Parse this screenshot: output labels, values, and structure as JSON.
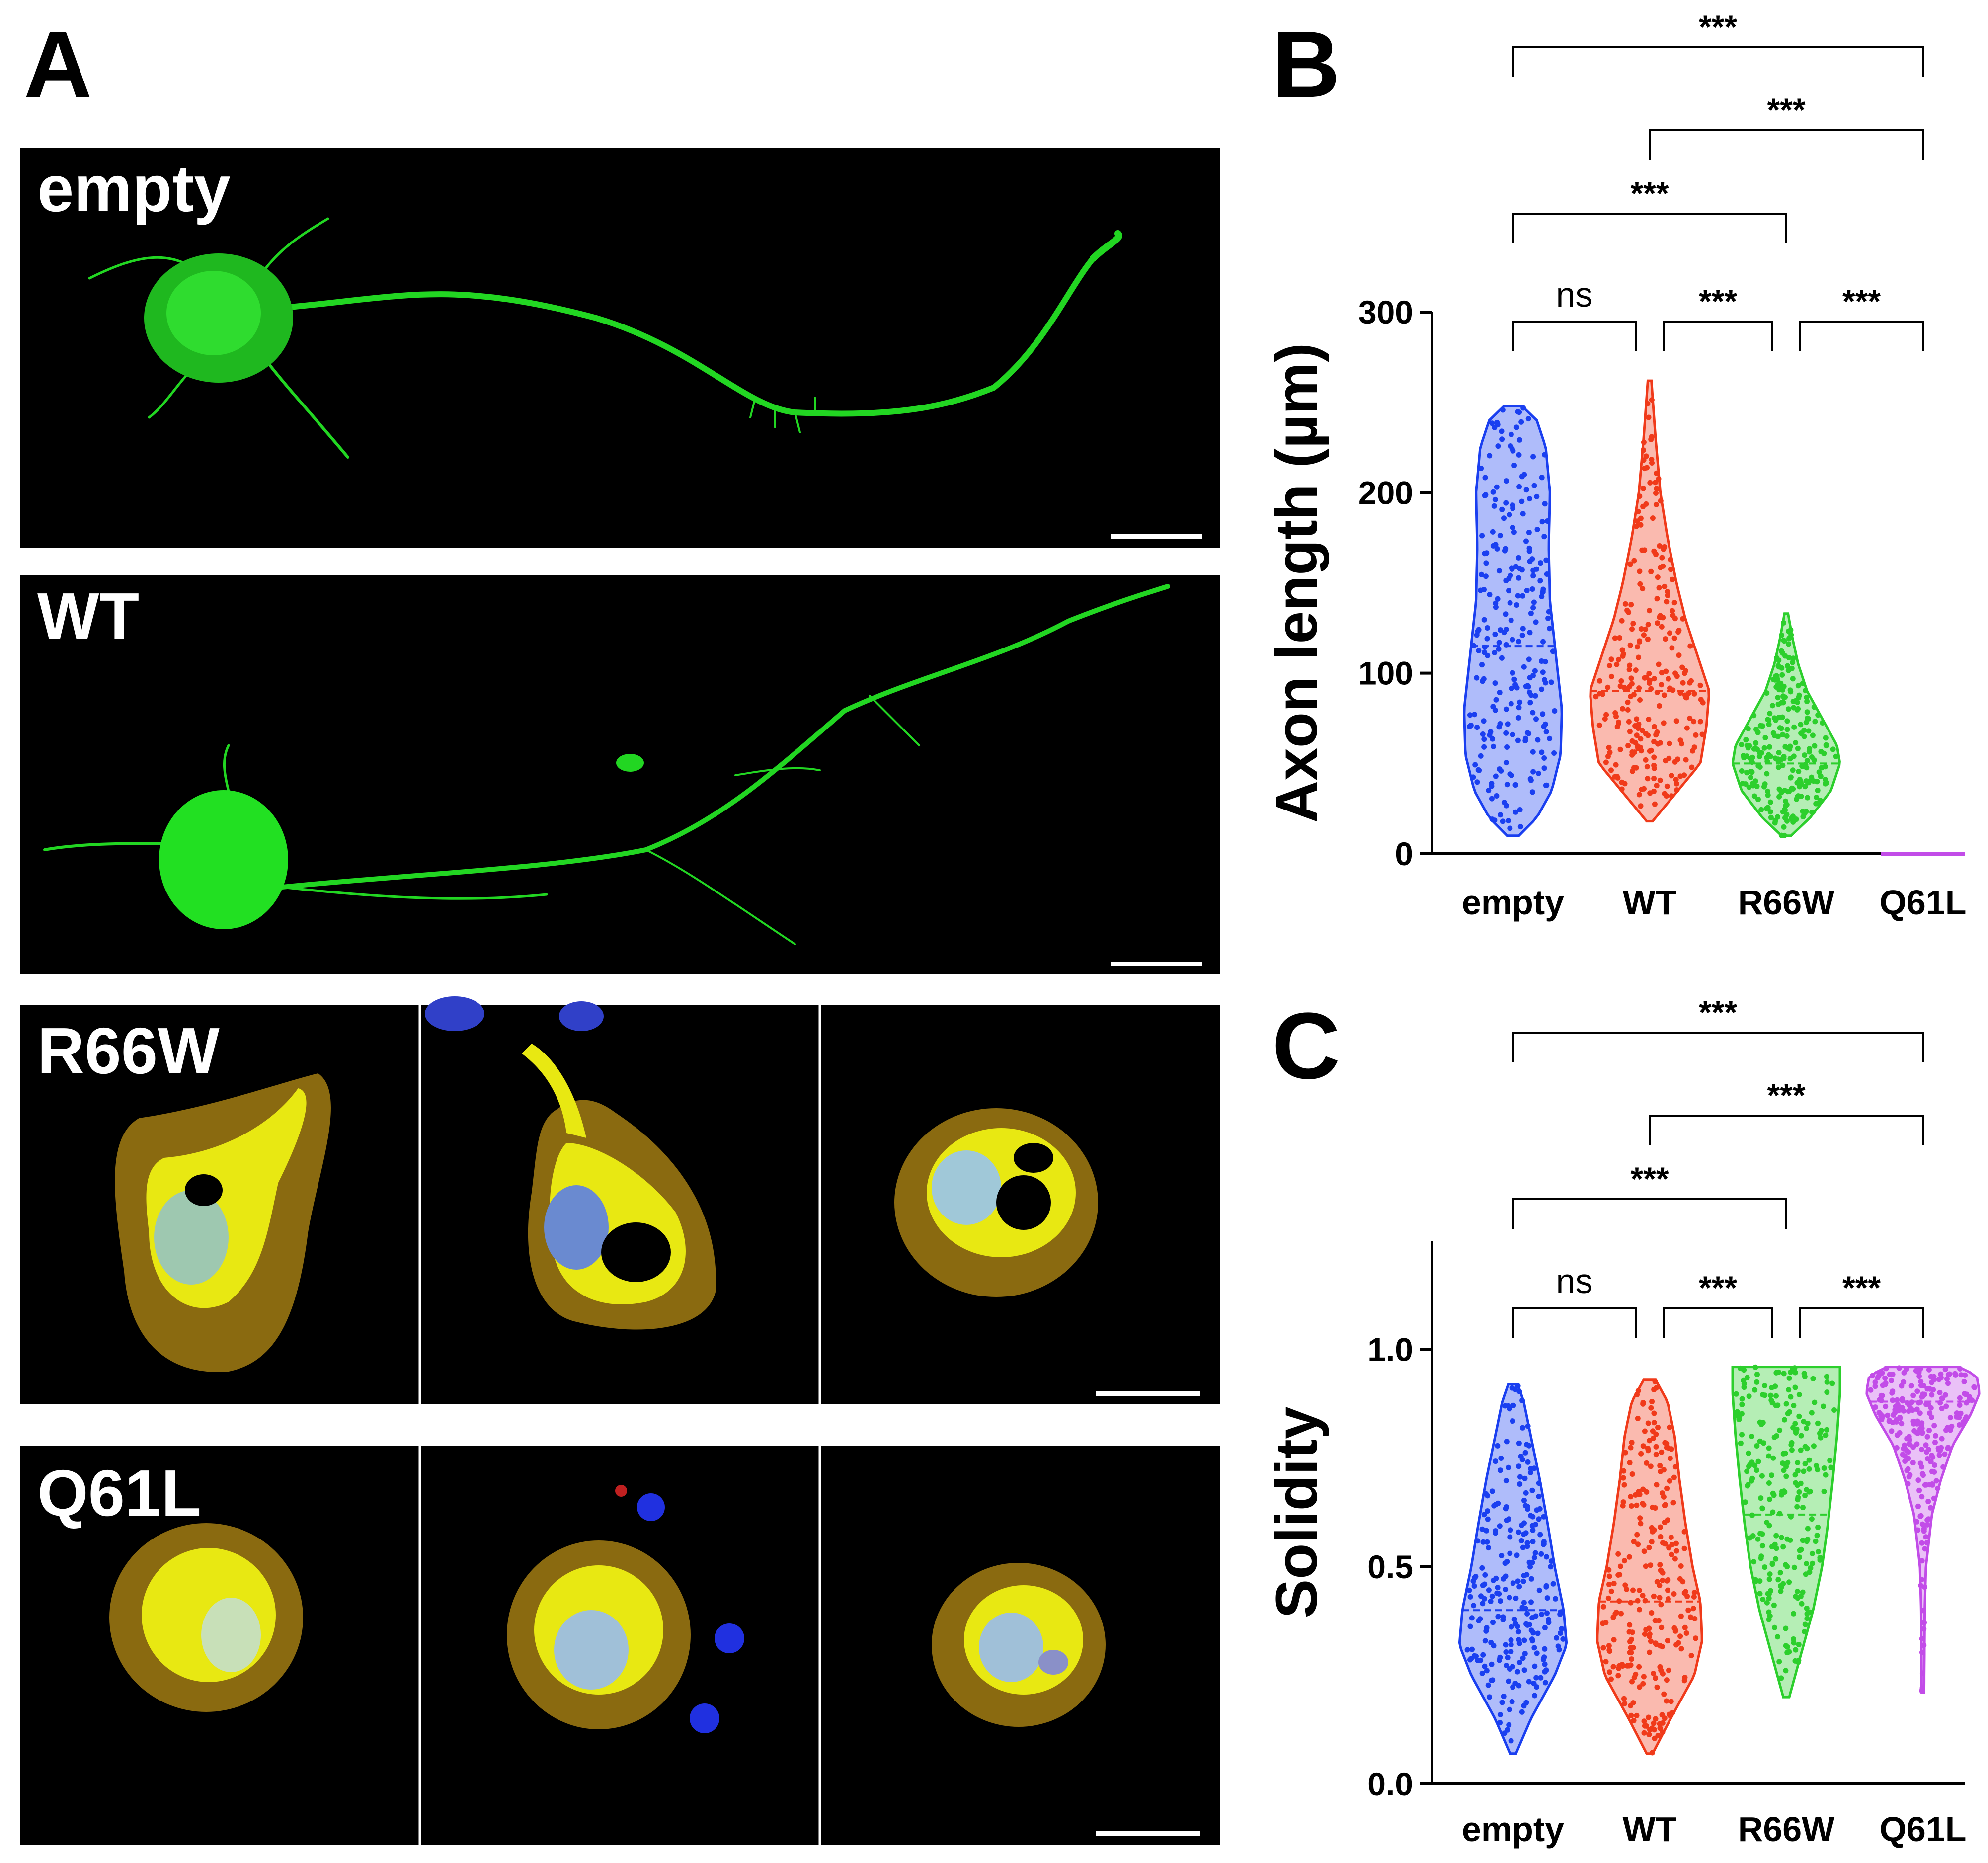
{
  "panels": {
    "A": "A",
    "B": "B",
    "C": "C"
  },
  "micrographs": {
    "rows": [
      {
        "label": "empty"
      },
      {
        "label": "WT"
      },
      {
        "label": "R66W"
      },
      {
        "label": "Q61L"
      }
    ]
  },
  "colors": {
    "empty": "#1a3ff0",
    "WT": "#f03a1a",
    "R66W": "#2ccf2c",
    "Q61L": "#c24ce8",
    "neuron_green": "#22d622",
    "cell_yellow": "#e8e812",
    "cell_orange": "#8a6a10",
    "nucleus_blue": "#5070e0"
  },
  "chart_data": [
    {
      "type": "violin",
      "panel": "B",
      "categories": [
        "empty",
        "WT",
        "R66W",
        "Q61L"
      ],
      "ylabel": "Axon length (µm)",
      "ylim": [
        0,
        300
      ],
      "yticks": [
        0,
        100,
        200,
        300
      ],
      "series": [
        {
          "category": "empty",
          "min": 10,
          "max": 248,
          "median": 115,
          "profile": [
            [
              10,
              0.1
            ],
            [
              20,
              0.4
            ],
            [
              35,
              0.65
            ],
            [
              55,
              0.8
            ],
            [
              80,
              0.82
            ],
            [
              110,
              0.72
            ],
            [
              140,
              0.62
            ],
            [
              170,
              0.6
            ],
            [
              200,
              0.62
            ],
            [
              225,
              0.55
            ],
            [
              240,
              0.4
            ],
            [
              248,
              0.15
            ]
          ]
        },
        {
          "category": "WT",
          "min": 18,
          "max": 262,
          "median": 90,
          "profile": [
            [
              18,
              0.05
            ],
            [
              30,
              0.35
            ],
            [
              50,
              0.85
            ],
            [
              70,
              0.95
            ],
            [
              90,
              1.0
            ],
            [
              110,
              0.8
            ],
            [
              130,
              0.6
            ],
            [
              150,
              0.45
            ],
            [
              175,
              0.3
            ],
            [
              200,
              0.18
            ],
            [
              230,
              0.1
            ],
            [
              262,
              0.03
            ]
          ]
        },
        {
          "category": "R66W",
          "min": 10,
          "max": 133,
          "median": 50,
          "profile": [
            [
              10,
              0.08
            ],
            [
              20,
              0.4
            ],
            [
              35,
              0.75
            ],
            [
              50,
              0.9
            ],
            [
              60,
              0.85
            ],
            [
              75,
              0.6
            ],
            [
              90,
              0.35
            ],
            [
              105,
              0.2
            ],
            [
              120,
              0.1
            ],
            [
              133,
              0.03
            ]
          ]
        },
        {
          "category": "Q61L",
          "min": 0,
          "max": 1,
          "median": 0,
          "profile": [
            [
              0,
              0.7
            ],
            [
              1,
              0.7
            ]
          ]
        }
      ],
      "comparisons": [
        {
          "a": "empty",
          "b": "Q61L",
          "label": "***"
        },
        {
          "a": "WT",
          "b": "Q61L",
          "label": "***"
        },
        {
          "a": "empty",
          "b": "R66W",
          "label": "***"
        },
        {
          "a": "empty",
          "b": "WT",
          "label": "ns"
        },
        {
          "a": "WT",
          "b": "R66W",
          "label": "***"
        },
        {
          "a": "R66W",
          "b": "Q61L",
          "label": "***"
        }
      ]
    },
    {
      "type": "violin",
      "panel": "C",
      "categories": [
        "empty",
        "WT",
        "R66W",
        "Q61L"
      ],
      "ylabel": "Solidity",
      "ylim": [
        0,
        1.25
      ],
      "yticks": [
        0.0,
        0.5,
        1.0
      ],
      "yticklabels": [
        "0.0",
        "0.5",
        "1.0"
      ],
      "series": [
        {
          "category": "empty",
          "min": 0.07,
          "max": 0.92,
          "median": 0.4,
          "profile": [
            [
              0.07,
              0.05
            ],
            [
              0.15,
              0.3
            ],
            [
              0.25,
              0.7
            ],
            [
              0.32,
              0.9
            ],
            [
              0.4,
              0.85
            ],
            [
              0.5,
              0.7
            ],
            [
              0.6,
              0.58
            ],
            [
              0.7,
              0.45
            ],
            [
              0.8,
              0.3
            ],
            [
              0.88,
              0.18
            ],
            [
              0.92,
              0.08
            ]
          ]
        },
        {
          "category": "WT",
          "min": 0.07,
          "max": 0.93,
          "median": 0.42,
          "profile": [
            [
              0.07,
              0.05
            ],
            [
              0.15,
              0.35
            ],
            [
              0.25,
              0.75
            ],
            [
              0.33,
              0.88
            ],
            [
              0.42,
              0.85
            ],
            [
              0.5,
              0.72
            ],
            [
              0.6,
              0.6
            ],
            [
              0.7,
              0.5
            ],
            [
              0.8,
              0.42
            ],
            [
              0.88,
              0.3
            ],
            [
              0.93,
              0.1
            ]
          ]
        },
        {
          "category": "R66W",
          "min": 0.2,
          "max": 0.96,
          "median": 0.62,
          "profile": [
            [
              0.2,
              0.05
            ],
            [
              0.3,
              0.25
            ],
            [
              0.4,
              0.45
            ],
            [
              0.5,
              0.6
            ],
            [
              0.6,
              0.7
            ],
            [
              0.7,
              0.78
            ],
            [
              0.8,
              0.85
            ],
            [
              0.9,
              0.9
            ],
            [
              0.96,
              0.9
            ]
          ]
        },
        {
          "category": "Q61L",
          "min": 0.21,
          "max": 0.96,
          "median": 0.88,
          "profile": [
            [
              0.21,
              0.02
            ],
            [
              0.4,
              0.03
            ],
            [
              0.5,
              0.05
            ],
            [
              0.62,
              0.15
            ],
            [
              0.7,
              0.3
            ],
            [
              0.78,
              0.5
            ],
            [
              0.85,
              0.8
            ],
            [
              0.9,
              0.95
            ],
            [
              0.94,
              0.9
            ],
            [
              0.96,
              0.6
            ]
          ]
        }
      ],
      "comparisons": [
        {
          "a": "empty",
          "b": "Q61L",
          "label": "***"
        },
        {
          "a": "WT",
          "b": "Q61L",
          "label": "***"
        },
        {
          "a": "empty",
          "b": "R66W",
          "label": "***"
        },
        {
          "a": "empty",
          "b": "WT",
          "label": "ns"
        },
        {
          "a": "WT",
          "b": "R66W",
          "label": "***"
        },
        {
          "a": "R66W",
          "b": "Q61L",
          "label": "***"
        }
      ]
    }
  ]
}
